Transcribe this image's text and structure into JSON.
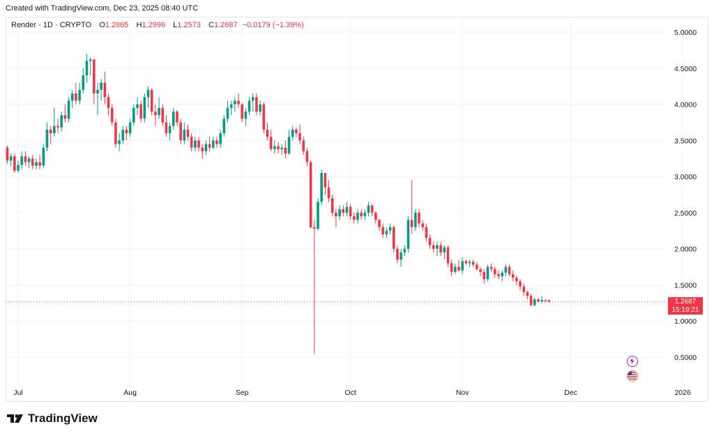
{
  "header": {
    "credit": "Created with TradingView.com, Dec 23, 2025 08:40 UTC"
  },
  "legend": {
    "symbol": "Render · 1D · CRYPTO",
    "open_label": "O",
    "open": "1.2865",
    "high_label": "H",
    "high": "1.2996",
    "low_label": "L",
    "low": "1.2573",
    "close_label": "C",
    "close": "1.2687",
    "change": "−0.0179 (−1.39%)"
  },
  "price_tag": {
    "price": "1.2687",
    "countdown": "15:19:21"
  },
  "logo": {
    "text": "TradingView"
  },
  "icons": {
    "event_top": "lightning-icon",
    "event_bottom": "us-flag-icon"
  },
  "colors": {
    "up": "#089981",
    "down": "#f23645",
    "grid": "#f0f3fa"
  },
  "chart_data": {
    "type": "candlestick",
    "title": "",
    "xlabel": "",
    "ylabel": "",
    "ylim": [
      0.2,
      5.2
    ],
    "y_ticks": [
      "5.0000",
      "4.5000",
      "4.0000",
      "3.5000",
      "3.0000",
      "2.5000",
      "2.0000",
      "1.5000",
      "1.0000",
      "0.5000"
    ],
    "x_ticks": [
      "Jul",
      "Aug",
      "Sep",
      "Oct",
      "Nov",
      "Dec",
      "2026"
    ],
    "x_tick_dates": [
      "2025-07-01",
      "2025-08-01",
      "2025-09-01",
      "2025-10-01",
      "2025-11-01",
      "2025-12-01",
      "2026-01-01"
    ],
    "start_date": "2025-06-28",
    "last_close": 1.2687,
    "candles": [
      [
        3.4,
        3.43,
        3.18,
        3.22
      ],
      [
        3.22,
        3.32,
        3.14,
        3.28
      ],
      [
        3.28,
        3.32,
        3.05,
        3.08
      ],
      [
        3.08,
        3.22,
        3.05,
        3.16
      ],
      [
        3.16,
        3.35,
        3.1,
        3.28
      ],
      [
        3.28,
        3.35,
        3.15,
        3.2
      ],
      [
        3.2,
        3.28,
        3.12,
        3.25
      ],
      [
        3.25,
        3.3,
        3.1,
        3.15
      ],
      [
        3.15,
        3.25,
        3.1,
        3.2
      ],
      [
        3.2,
        3.3,
        3.1,
        3.15
      ],
      [
        3.15,
        3.45,
        3.12,
        3.4
      ],
      [
        3.4,
        3.75,
        3.35,
        3.65
      ],
      [
        3.65,
        3.7,
        3.45,
        3.6
      ],
      [
        3.6,
        3.95,
        3.55,
        3.7
      ],
      [
        3.7,
        3.8,
        3.6,
        3.68
      ],
      [
        3.68,
        3.9,
        3.62,
        3.85
      ],
      [
        3.85,
        4.0,
        3.75,
        3.8
      ],
      [
        3.8,
        4.1,
        3.75,
        4.05
      ],
      [
        4.05,
        4.2,
        3.95,
        4.15
      ],
      [
        4.15,
        4.3,
        4.0,
        4.05
      ],
      [
        4.05,
        4.3,
        4.0,
        4.2
      ],
      [
        4.2,
        4.5,
        4.15,
        4.4
      ],
      [
        4.4,
        4.7,
        4.3,
        4.6
      ],
      [
        4.6,
        4.65,
        4.4,
        4.62
      ],
      [
        4.62,
        4.63,
        4.0,
        4.15
      ],
      [
        4.15,
        4.3,
        3.85,
        4.2
      ],
      [
        4.2,
        4.35,
        4.05,
        4.3
      ],
      [
        4.3,
        4.45,
        4.0,
        4.1
      ],
      [
        4.1,
        4.15,
        3.85,
        3.95
      ],
      [
        3.95,
        4.0,
        3.7,
        3.75
      ],
      [
        3.75,
        3.8,
        3.4,
        3.45
      ],
      [
        3.45,
        3.6,
        3.35,
        3.5
      ],
      [
        3.5,
        3.7,
        3.45,
        3.65
      ],
      [
        3.65,
        3.7,
        3.5,
        3.6
      ],
      [
        3.6,
        3.8,
        3.55,
        3.75
      ],
      [
        3.75,
        4.0,
        3.7,
        3.95
      ],
      [
        3.95,
        4.1,
        3.85,
        4.0
      ],
      [
        4.0,
        4.05,
        3.75,
        3.8
      ],
      [
        3.8,
        4.15,
        3.75,
        4.1
      ],
      [
        4.1,
        4.25,
        3.95,
        4.2
      ],
      [
        4.2,
        4.22,
        3.85,
        3.9
      ],
      [
        3.9,
        4.0,
        3.7,
        3.85
      ],
      [
        3.85,
        4.1,
        3.8,
        3.95
      ],
      [
        3.95,
        4.0,
        3.7,
        3.75
      ],
      [
        3.75,
        3.85,
        3.55,
        3.6
      ],
      [
        3.6,
        3.75,
        3.5,
        3.7
      ],
      [
        3.7,
        3.95,
        3.65,
        3.9
      ],
      [
        3.9,
        3.92,
        3.7,
        3.75
      ],
      [
        3.75,
        3.8,
        3.45,
        3.5
      ],
      [
        3.5,
        3.75,
        3.45,
        3.65
      ],
      [
        3.65,
        3.72,
        3.5,
        3.55
      ],
      [
        3.55,
        3.6,
        3.35,
        3.4
      ],
      [
        3.4,
        3.55,
        3.35,
        3.5
      ],
      [
        3.5,
        3.55,
        3.35,
        3.4
      ],
      [
        3.4,
        3.45,
        3.25,
        3.35
      ],
      [
        3.35,
        3.5,
        3.3,
        3.45
      ],
      [
        3.45,
        3.55,
        3.35,
        3.4
      ],
      [
        3.4,
        3.55,
        3.38,
        3.5
      ],
      [
        3.5,
        3.55,
        3.4,
        3.45
      ],
      [
        3.45,
        3.65,
        3.4,
        3.6
      ],
      [
        3.6,
        3.85,
        3.55,
        3.8
      ],
      [
        3.8,
        4.05,
        3.75,
        3.95
      ],
      [
        3.95,
        4.05,
        3.85,
        4.0
      ],
      [
        4.0,
        4.1,
        3.9,
        4.05
      ],
      [
        4.05,
        4.15,
        3.95,
        4.0
      ],
      [
        4.0,
        4.02,
        3.75,
        3.8
      ],
      [
        3.8,
        3.95,
        3.7,
        3.9
      ],
      [
        3.9,
        4.1,
        3.85,
        4.05
      ],
      [
        4.05,
        4.15,
        3.9,
        4.1
      ],
      [
        4.1,
        4.15,
        3.85,
        3.9
      ],
      [
        3.9,
        4.05,
        3.85,
        4.0
      ],
      [
        4.0,
        4.03,
        3.6,
        3.65
      ],
      [
        3.65,
        3.75,
        3.5,
        3.55
      ],
      [
        3.55,
        3.65,
        3.35,
        3.38
      ],
      [
        3.38,
        3.5,
        3.32,
        3.42
      ],
      [
        3.42,
        3.48,
        3.32,
        3.38
      ],
      [
        3.38,
        3.45,
        3.3,
        3.4
      ],
      [
        3.4,
        3.5,
        3.25,
        3.32
      ],
      [
        3.32,
        3.65,
        3.3,
        3.55
      ],
      [
        3.55,
        3.7,
        3.5,
        3.65
      ],
      [
        3.65,
        3.68,
        3.55,
        3.6
      ],
      [
        3.6,
        3.72,
        3.45,
        3.5
      ],
      [
        3.5,
        3.55,
        3.3,
        3.35
      ],
      [
        3.35,
        3.4,
        3.15,
        3.2
      ],
      [
        3.2,
        3.22,
        2.28,
        2.3
      ],
      [
        2.3,
        2.4,
        0.55,
        2.28
      ],
      [
        2.28,
        2.7,
        2.25,
        2.65
      ],
      [
        2.65,
        3.1,
        2.6,
        3.05
      ],
      [
        3.05,
        3.05,
        2.75,
        2.85
      ],
      [
        2.85,
        2.95,
        2.65,
        2.7
      ],
      [
        2.7,
        2.75,
        2.45,
        2.5
      ],
      [
        2.5,
        2.55,
        2.3,
        2.45
      ],
      [
        2.45,
        2.6,
        2.4,
        2.55
      ],
      [
        2.55,
        2.6,
        2.45,
        2.5
      ],
      [
        2.5,
        2.65,
        2.45,
        2.58
      ],
      [
        2.58,
        2.62,
        2.4,
        2.45
      ],
      [
        2.45,
        2.5,
        2.35,
        2.4
      ],
      [
        2.4,
        2.55,
        2.35,
        2.5
      ],
      [
        2.5,
        2.55,
        2.4,
        2.45
      ],
      [
        2.45,
        2.55,
        2.4,
        2.5
      ],
      [
        2.5,
        2.65,
        2.45,
        2.6
      ],
      [
        2.6,
        2.62,
        2.45,
        2.5
      ],
      [
        2.5,
        2.52,
        2.35,
        2.4
      ],
      [
        2.4,
        2.42,
        2.25,
        2.3
      ],
      [
        2.3,
        2.35,
        2.15,
        2.2
      ],
      [
        2.2,
        2.3,
        2.15,
        2.25
      ],
      [
        2.25,
        2.35,
        2.2,
        2.3
      ],
      [
        2.3,
        2.32,
        1.95,
        2.0
      ],
      [
        2.0,
        2.05,
        1.8,
        1.85
      ],
      [
        1.85,
        2.0,
        1.75,
        1.95
      ],
      [
        1.95,
        2.05,
        1.9,
        2.0
      ],
      [
        2.0,
        2.45,
        1.95,
        2.4
      ],
      [
        2.4,
        2.95,
        2.2,
        2.3
      ],
      [
        2.3,
        2.55,
        2.25,
        2.5
      ],
      [
        2.5,
        2.55,
        2.3,
        2.35
      ],
      [
        2.35,
        2.4,
        2.25,
        2.3
      ],
      [
        2.3,
        2.35,
        2.1,
        2.15
      ],
      [
        2.15,
        2.2,
        2.0,
        2.05
      ],
      [
        2.05,
        2.1,
        1.95,
        2.0
      ],
      [
        2.0,
        2.1,
        1.9,
        2.05
      ],
      [
        2.05,
        2.1,
        1.9,
        1.95
      ],
      [
        1.95,
        2.05,
        1.85,
        2.02
      ],
      [
        2.02,
        2.05,
        1.75,
        1.8
      ],
      [
        1.8,
        1.85,
        1.62,
        1.68
      ],
      [
        1.68,
        1.8,
        1.65,
        1.75
      ],
      [
        1.75,
        1.85,
        1.68,
        1.7
      ],
      [
        1.7,
        1.88,
        1.65,
        1.83
      ],
      [
        1.83,
        1.85,
        1.78,
        1.8
      ],
      [
        1.8,
        1.85,
        1.75,
        1.82
      ],
      [
        1.82,
        1.85,
        1.75,
        1.78
      ],
      [
        1.78,
        1.82,
        1.7,
        1.72
      ],
      [
        1.72,
        1.75,
        1.62,
        1.68
      ],
      [
        1.68,
        1.72,
        1.52,
        1.58
      ],
      [
        1.58,
        1.78,
        1.55,
        1.75
      ],
      [
        1.75,
        1.8,
        1.68,
        1.72
      ],
      [
        1.72,
        1.75,
        1.6,
        1.65
      ],
      [
        1.65,
        1.7,
        1.58,
        1.62
      ],
      [
        1.62,
        1.7,
        1.55,
        1.67
      ],
      [
        1.67,
        1.78,
        1.62,
        1.75
      ],
      [
        1.75,
        1.78,
        1.62,
        1.65
      ],
      [
        1.65,
        1.7,
        1.55,
        1.6
      ],
      [
        1.6,
        1.63,
        1.5,
        1.55
      ],
      [
        1.55,
        1.58,
        1.42,
        1.48
      ],
      [
        1.48,
        1.52,
        1.35,
        1.4
      ],
      [
        1.4,
        1.42,
        1.3,
        1.35
      ],
      [
        1.35,
        1.38,
        1.2,
        1.22
      ],
      [
        1.22,
        1.32,
        1.2,
        1.3
      ],
      [
        1.3,
        1.32,
        1.25,
        1.27
      ],
      [
        1.27,
        1.34,
        1.25,
        1.29
      ],
      [
        1.29,
        1.3,
        1.26,
        1.2865
      ],
      [
        1.2865,
        1.2996,
        1.2573,
        1.2687
      ]
    ]
  }
}
